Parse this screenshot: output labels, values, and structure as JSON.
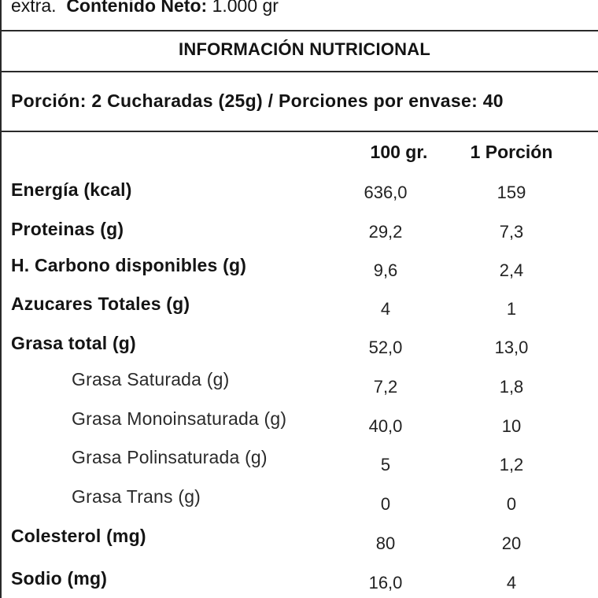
{
  "header": {
    "extra_text": "extra.",
    "net_content_label": "Contenido Neto:",
    "net_content_value": "1.000 gr"
  },
  "title": "INFORMACIÓN NUTRICIONAL",
  "serving": "Porción: 2 Cucharadas (25g) / Porciones por envase: 40",
  "columns": {
    "per_100": "100 gr.",
    "per_portion": "1 Porción"
  },
  "rows": [
    {
      "name": "Energía (kcal)",
      "per_100": "636,0",
      "per_portion": "159"
    },
    {
      "name": "Proteinas (g)",
      "per_100": "29,2",
      "per_portion": "7,3"
    },
    {
      "name": "H. Carbono disponibles (g)",
      "per_100": "9,6",
      "per_portion": "2,4"
    },
    {
      "name": "Azucares Totales (g)",
      "per_100": "4",
      "per_portion": "1"
    },
    {
      "name": "Grasa total (g)",
      "per_100": "52,0",
      "per_portion": "13,0"
    },
    {
      "name": "Grasa Saturada (g)",
      "per_100": "7,2",
      "per_portion": "1,8"
    },
    {
      "name": "Grasa Monoinsaturada (g)",
      "per_100": "40,0",
      "per_portion": "10"
    },
    {
      "name": "Grasa Polinsaturada (g)",
      "per_100": "5",
      "per_portion": "1,2"
    },
    {
      "name": "Grasa Trans (g)",
      "per_100": "0",
      "per_portion": "0"
    },
    {
      "name": "Colesterol (mg)",
      "per_100": "80",
      "per_portion": "20"
    },
    {
      "name": "Sodio (mg)",
      "per_100": "16,0",
      "per_portion": "4"
    }
  ]
}
